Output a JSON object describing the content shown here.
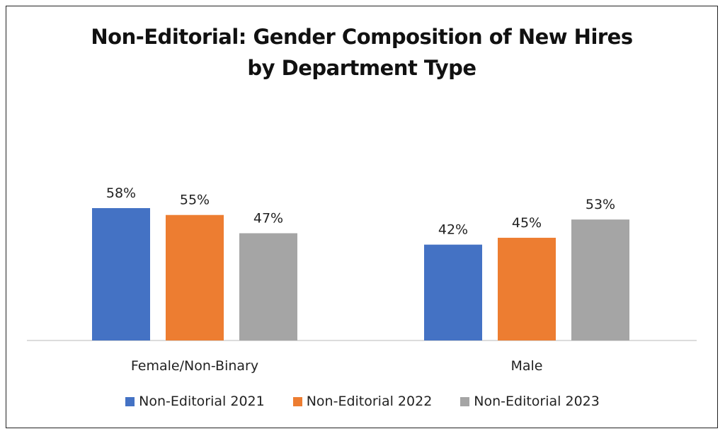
{
  "chart_data": {
    "type": "bar",
    "title": "Non-Editorial: Gender Composition of New Hires by Department Type",
    "title_lines": [
      "Non-Editorial: Gender Composition of New Hires",
      "by Department Type"
    ],
    "categories": [
      "Female/Non-Binary",
      "Male"
    ],
    "series": [
      {
        "name": "Non-Editorial 2021",
        "values": [
          58,
          42
        ],
        "labels": [
          "58%",
          "42%"
        ],
        "color": "#4472C4"
      },
      {
        "name": "Non-Editorial 2022",
        "values": [
          55,
          45
        ],
        "labels": [
          "55%",
          "45%"
        ],
        "color": "#ED7D31"
      },
      {
        "name": "Non-Editorial 2023",
        "values": [
          47,
          53
        ],
        "labels": [
          "47%",
          "53%"
        ],
        "color": "#A5A5A5"
      }
    ],
    "unit": "%",
    "ylim": [
      0,
      70
    ],
    "grid": false,
    "legend_position": "bottom"
  }
}
